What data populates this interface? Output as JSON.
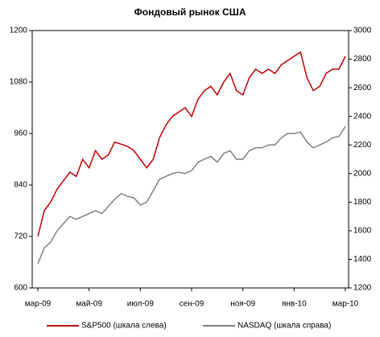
{
  "chart_data": {
    "type": "line",
    "title": "Фондовый рынок США",
    "categories": [
      "мар-09",
      null,
      null,
      null,
      null,
      null,
      null,
      null,
      "май-09",
      null,
      null,
      null,
      null,
      null,
      null,
      null,
      "июл-09",
      null,
      null,
      null,
      null,
      null,
      null,
      null,
      "сен-09",
      null,
      null,
      null,
      null,
      null,
      null,
      null,
      "ноя-09",
      null,
      null,
      null,
      null,
      null,
      null,
      null,
      "янв-10",
      null,
      null,
      null,
      null,
      null,
      null,
      null,
      "мар-10"
    ],
    "series": [
      {
        "name": "S&P500 (шкала слева)",
        "color": "#c00000",
        "axis": "y",
        "values": [
          720,
          780,
          800,
          830,
          850,
          870,
          860,
          900,
          880,
          920,
          900,
          910,
          940,
          935,
          930,
          920,
          900,
          880,
          900,
          950,
          980,
          1000,
          1010,
          1020,
          1000,
          1040,
          1060,
          1070,
          1050,
          1080,
          1100,
          1060,
          1050,
          1090,
          1110,
          1100,
          1110,
          1100,
          1120,
          1130,
          1140,
          1150,
          1090,
          1060,
          1070,
          1100,
          1110,
          1110,
          1140
        ]
      },
      {
        "name": "NASDAQ (шкала справа)",
        "color": "#808080",
        "axis": "y2",
        "values": [
          1370,
          1480,
          1520,
          1600,
          1650,
          1700,
          1680,
          1700,
          1720,
          1740,
          1720,
          1770,
          1820,
          1860,
          1840,
          1830,
          1780,
          1800,
          1880,
          1960,
          1980,
          2000,
          2010,
          2000,
          2020,
          2080,
          2100,
          2120,
          2080,
          2140,
          2160,
          2100,
          2100,
          2160,
          2180,
          2180,
          2200,
          2200,
          2250,
          2280,
          2280,
          2290,
          2220,
          2180,
          2200,
          2220,
          2250,
          2260,
          2330
        ]
      }
    ],
    "ylim": [
      600,
      1200
    ],
    "yticks": [
      600,
      720,
      840,
      960,
      1080,
      1200
    ],
    "y2lim": [
      1200,
      3000
    ],
    "y2ticks": [
      1200,
      1400,
      1600,
      1800,
      2000,
      2200,
      2400,
      2600,
      2800,
      3000
    ],
    "grid": false,
    "legend": "bottom"
  }
}
